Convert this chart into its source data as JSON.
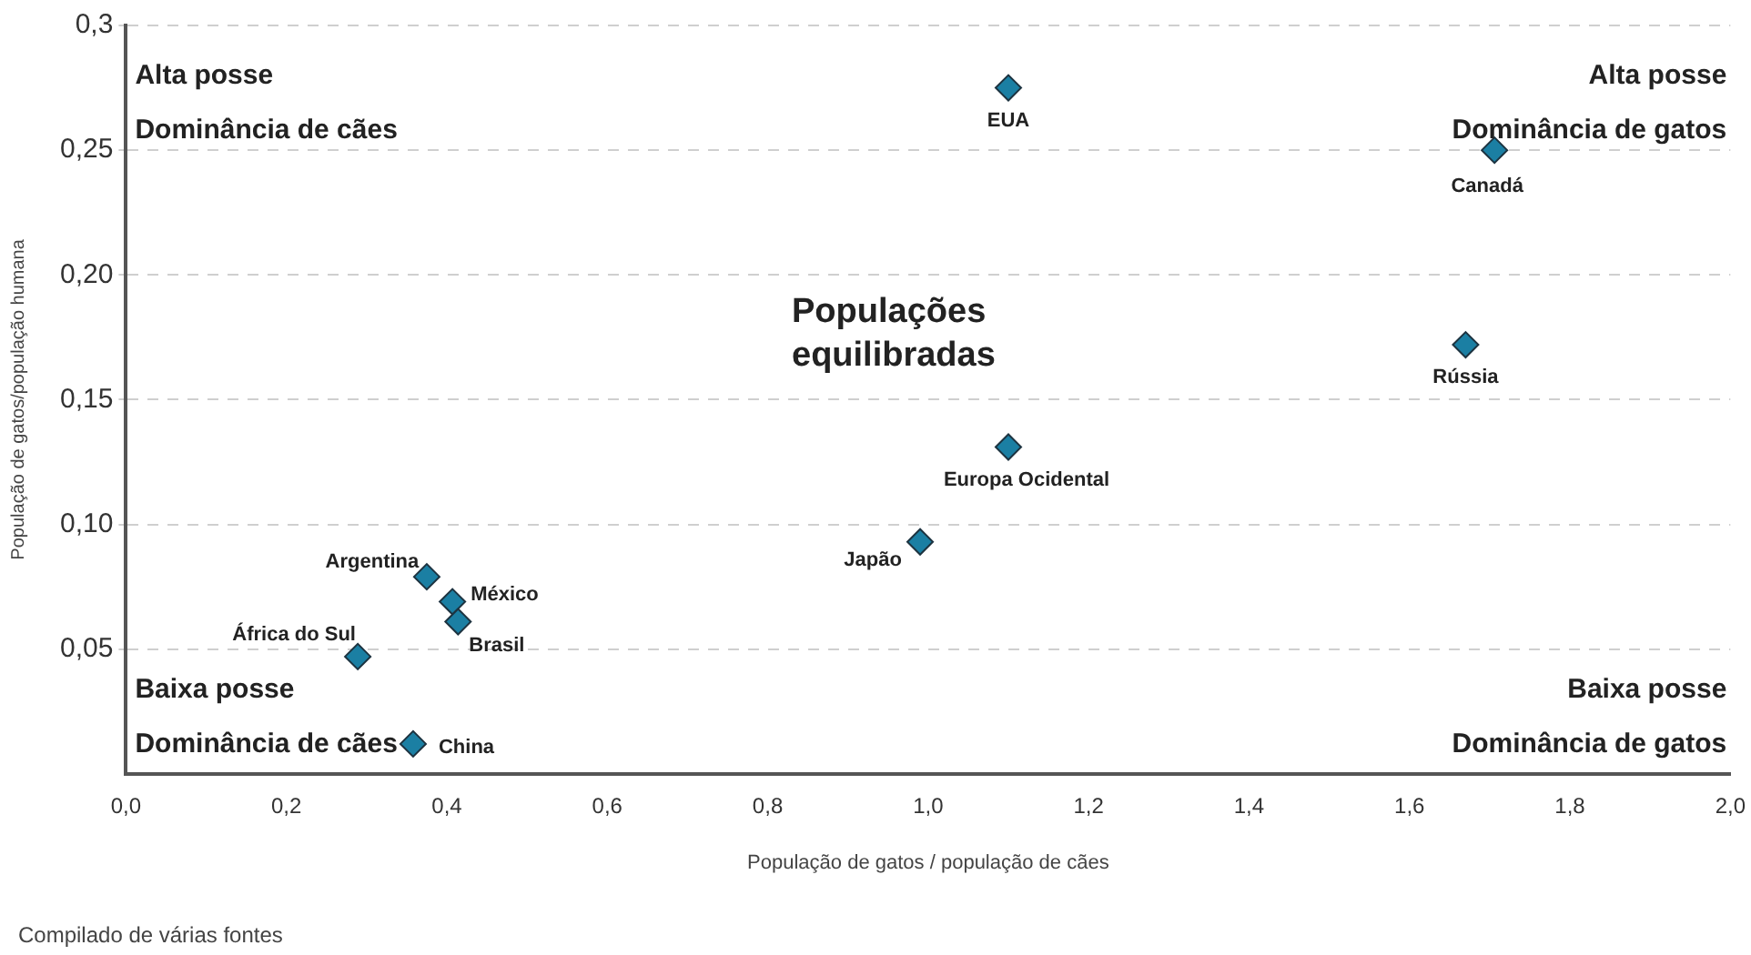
{
  "chart_data": {
    "type": "scatter",
    "xlabel": "População de gatos / população de cães",
    "ylabel": "População de gatos/população humana",
    "x": [
      1.1,
      1.706,
      1.67,
      1.1,
      0.99,
      0.375,
      0.407,
      0.414,
      0.289,
      0.358
    ],
    "values": [
      0.275,
      0.25,
      0.172,
      0.131,
      0.093,
      0.079,
      0.069,
      0.061,
      0.047,
      0.012
    ],
    "color": "#1b7fa3",
    "marker": "diamond",
    "xlim": [
      0,
      2
    ],
    "ylim": [
      0,
      0.3
    ],
    "xticks": [
      {
        "value": 0,
        "label": "0,0"
      },
      {
        "value": 0.2,
        "label": "0,2"
      },
      {
        "value": 0.4,
        "label": "0,4"
      },
      {
        "value": 0.6,
        "label": "0,6"
      },
      {
        "value": 0.8,
        "label": "0,8"
      },
      {
        "value": 1,
        "label": "1,0"
      },
      {
        "value": 1.2,
        "label": "1,2"
      },
      {
        "value": 1.4,
        "label": "1,4"
      },
      {
        "value": 1.6,
        "label": "1,6"
      },
      {
        "value": 1.8,
        "label": "1,8"
      },
      {
        "value": 2,
        "label": "2,0"
      }
    ],
    "yticks": [
      {
        "value": 0.05,
        "label": "0,05"
      },
      {
        "value": 0.1,
        "label": "0,10"
      },
      {
        "value": 0.15,
        "label": "0,15"
      },
      {
        "value": 0.2,
        "label": "0,20"
      },
      {
        "value": 0.25,
        "label": "0,25"
      },
      {
        "value": 0.3,
        "label": "0,3"
      }
    ],
    "grid": "y",
    "annotations": [
      "Alta posse\nDominância de cães",
      "Alta posse\nDominância de gatos",
      "Baixa posse\nDominância de cães",
      "Baixa posse\nDominância de gatos",
      "Populações\nequilibradas",
      {
        "text": "EUA",
        "x": 1.1,
        "y": 0.275
      },
      {
        "text": "Canadá",
        "x": 1.706,
        "y": 0.25
      },
      {
        "text": "Rússia",
        "x": 1.67,
        "y": 0.172
      },
      {
        "text": "Europa Ocidental",
        "x": 1.1,
        "y": 0.131
      },
      {
        "text": "Japão",
        "x": 0.99,
        "y": 0.093
      },
      {
        "text": "Argentina",
        "x": 0.375,
        "y": 0.079
      },
      {
        "text": "México",
        "x": 0.407,
        "y": 0.069
      },
      {
        "text": "Brasil",
        "x": 0.414,
        "y": 0.061
      },
      {
        "text": "África do Sul",
        "x": 0.289,
        "y": 0.047
      },
      {
        "text": "China",
        "x": 0.358,
        "y": 0.012
      },
      "Compilado de várias fontes"
    ]
  }
}
